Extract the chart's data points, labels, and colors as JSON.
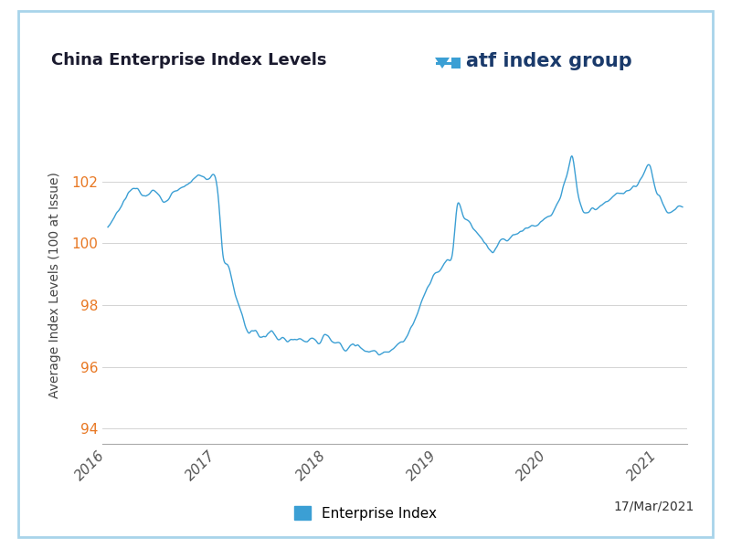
{
  "title": "China Enterprise Index Levels",
  "ylabel": "Average Index Levels (100 at Issue)",
  "legend_label": "Enterprise Index",
  "date_label": "17/Mar/2021",
  "line_color": "#3b9fd4",
  "legend_color": "#3b9fd4",
  "ylim": [
    93.5,
    103.8
  ],
  "yticks": [
    94,
    96,
    98,
    100,
    102
  ],
  "ytick_color": "#e87722",
  "title_color": "#1a1a2e",
  "ylabel_color": "#444444",
  "border_color": "#a8d4ea",
  "background_color": "#ffffff",
  "plot_bg_color": "#ffffff",
  "grid_color": "#cccccc",
  "xtick_color": "#555555",
  "x_years": [
    2016,
    2017,
    2018,
    2019,
    2020,
    2021
  ],
  "atf_text_color": "#1a3a6b",
  "atf_logo_color": "#3b9fd4"
}
